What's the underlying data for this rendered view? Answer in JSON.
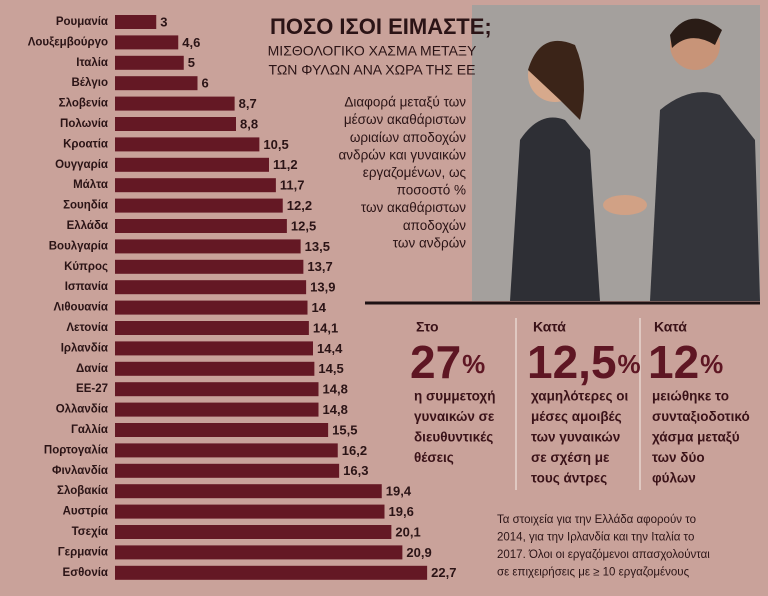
{
  "chart_data": {
    "type": "bar",
    "orientation": "horizontal",
    "color": "#641824",
    "categories": [
      "Ρουμανία",
      "Λουξεμβούργο",
      "Ιταλία",
      "Βέλγιο",
      "Σλοβενία",
      "Πολωνία",
      "Κροατία",
      "Ουγγαρία",
      "Μάλτα",
      "Σουηδία",
      "Ελλάδα",
      "Βουλγαρία",
      "Κύπρος",
      "Ισπανία",
      "Λιθουανία",
      "Λετονία",
      "Ιρλανδία",
      "Δανία",
      "ΕΕ-27",
      "Ολλανδία",
      "Γαλλία",
      "Πορτογαλία",
      "Φινλανδία",
      "Σλοβακία",
      "Αυστρία",
      "Τσεχία",
      "Γερμανία",
      "Εσθονία"
    ],
    "values": [
      3,
      4.6,
      5,
      6,
      8.7,
      8.8,
      10.5,
      11.2,
      11.7,
      12.2,
      12.5,
      13.5,
      13.7,
      13.9,
      14,
      14.1,
      14.4,
      14.5,
      14.8,
      14.8,
      15.5,
      16.2,
      16.3,
      19.4,
      19.6,
      20.1,
      20.9,
      22.7
    ],
    "value_labels": [
      "3",
      "4,6",
      "5",
      "6",
      "8,7",
      "8,8",
      "10,5",
      "11,2",
      "11,7",
      "12,2",
      "12,5",
      "13,5",
      "13,7",
      "13,9",
      "14",
      "14,1",
      "14,4",
      "14,5",
      "14,8",
      "14,8",
      "15,5",
      "16,2",
      "16,3",
      "19,4",
      "19,6",
      "20,1",
      "20,9",
      "22,7"
    ]
  },
  "header": {
    "title": "ΠΟΣΟ ΙΣΟΙ ΕΙΜΑΣΤΕ;",
    "subtitle": [
      "ΜΙΣΘΟΛΟΓΙΚΟ ΧΑΣΜΑ ΜΕΤΑΞΥ",
      "ΤΩΝ ΦΥΛΩΝ ΑΝΑ ΧΩΡΑ ΤΗΣ ΕΕ"
    ],
    "description": [
      "Διαφορά μεταξύ των",
      "μέσων ακαθάριστων",
      "ωριαίων αποδοχών",
      "ανδρών και γυναικών",
      "εργαζομένων, ως",
      "ποσοστό %",
      "των ακαθάριστων",
      "αποδοχών",
      "των ανδρών"
    ]
  },
  "stats": [
    {
      "lead": "Στο",
      "figure": "27",
      "unit": "%",
      "text": [
        "η συμμετοχή",
        "γυναικών σε",
        "διευθυντικές",
        "θέσεις"
      ]
    },
    {
      "lead": "Κατά",
      "figure": "12,5",
      "unit": "%",
      "text": [
        "χαμηλότερες οι",
        "μέσες αμοιβές",
        "των γυναικών",
        "σε σχέση με",
        "τους άντρες"
      ]
    },
    {
      "lead": "Κατά",
      "figure": "12",
      "unit": "%",
      "text": [
        "μειώθηκε το",
        "συνταξιοδοτικό",
        "χάσμα μεταξύ",
        "των δύο",
        "φύλων"
      ]
    }
  ],
  "footnote": [
    "Τα στοιχεία για την Ελλάδα αφορούν το",
    "2014, για την Ιρλανδία και την Ιταλία το",
    "2017. Όλοι οι εργαζόμενοι απασχολούνται",
    "σε επιχειρήσεις με ≥ 10 εργαζομένους"
  ]
}
